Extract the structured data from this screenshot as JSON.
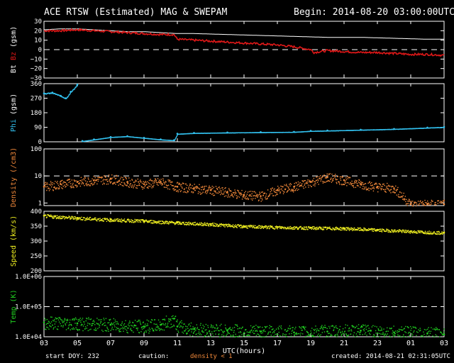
{
  "header": {
    "title": "ACE RTSW (Estimated) MAG & SWEPAM",
    "begin": "Begin: 2014-08-20 03:00:00UTC"
  },
  "footer": {
    "start_doy": "start DOY: 232",
    "caution": "caution:",
    "density_note": "density < 1",
    "created": "created: 2014-08-21 02:31:05UTC"
  },
  "colors": {
    "bt": "#ffffff",
    "bz": "#e01818",
    "phi": "#33c2f0",
    "density": "#f0883a",
    "speed": "#f0f020",
    "temp": "#20d020"
  },
  "chart_data": [
    {
      "type": "line",
      "name": "mag",
      "ylabel_parts": [
        "Bt",
        "Bz",
        "(gsm)"
      ],
      "ylim": [
        -30,
        30
      ],
      "ticks": [
        "30",
        "20",
        "10",
        "0",
        "−10",
        "−20",
        "−30"
      ],
      "tick_values": [
        30,
        20,
        10,
        0,
        -10,
        -20,
        -30
      ],
      "dashed_ref": 0,
      "series": [
        {
          "name": "Bt",
          "x": [
            3,
            4,
            5,
            6,
            7,
            8,
            9,
            10,
            11,
            12,
            14,
            16,
            18,
            20,
            22,
            24,
            26,
            27
          ],
          "y": [
            21,
            22,
            22,
            21,
            20,
            19,
            19,
            18,
            17,
            17,
            16,
            15,
            14,
            13,
            13,
            12,
            11,
            11
          ]
        },
        {
          "name": "Bz",
          "x": [
            3,
            4,
            5,
            6,
            7,
            8,
            9,
            10,
            10.8,
            11,
            12,
            13,
            14,
            15,
            16,
            17,
            18,
            19,
            19.2,
            20,
            21,
            22,
            23,
            24,
            25,
            26,
            27
          ],
          "y": [
            20,
            20,
            21,
            20,
            19,
            18,
            17,
            16,
            16,
            11,
            10,
            9,
            8,
            7,
            6,
            5,
            3,
            0,
            -3,
            -1,
            -2,
            -3,
            -3,
            -4,
            -5,
            -5,
            -6
          ]
        }
      ]
    },
    {
      "type": "scatter",
      "name": "phi",
      "ylabel_parts": [
        "Phi",
        "(gsm)"
      ],
      "ylim": [
        0,
        360
      ],
      "ticks": [
        "360",
        "270",
        "180",
        "90",
        "0"
      ],
      "tick_values": [
        360,
        270,
        180,
        90,
        0
      ],
      "series": [
        {
          "name": "Phi-a",
          "x": [
            3,
            3.5,
            4,
            4.3,
            4.6,
            5
          ],
          "y": [
            300,
            305,
            285,
            270,
            310,
            355
          ]
        },
        {
          "name": "Phi-b",
          "x": [
            5.3,
            6,
            7,
            8,
            9,
            10,
            10.8,
            11,
            12,
            14,
            16,
            18,
            19,
            20,
            22,
            24,
            26,
            27
          ],
          "y": [
            5,
            15,
            30,
            35,
            25,
            15,
            10,
            50,
            55,
            58,
            60,
            62,
            68,
            70,
            75,
            80,
            88,
            92
          ]
        }
      ]
    },
    {
      "type": "scatter",
      "name": "density",
      "ylabel": "Density (/cm3)",
      "log": true,
      "ylim": [
        0.8,
        100
      ],
      "ticks": [
        "100",
        "10",
        "1"
      ],
      "tick_values": [
        100,
        10,
        1
      ],
      "dashed_ref": 10,
      "series": [
        {
          "name": "Density",
          "x": [
            3,
            4,
            5,
            6,
            7,
            8,
            9,
            10,
            11,
            12,
            13,
            14,
            15,
            16,
            17,
            18,
            19,
            20,
            21,
            22,
            23,
            24,
            25,
            26,
            27
          ],
          "y": [
            4,
            5,
            6,
            7,
            8,
            6,
            5,
            6,
            4,
            3.5,
            3,
            2.5,
            2,
            1.8,
            3,
            4,
            6,
            9,
            7,
            5,
            4,
            3.5,
            0.9,
            0.9,
            0.9
          ]
        }
      ]
    },
    {
      "type": "scatter",
      "name": "speed",
      "ylabel": "Speed (km/s)",
      "ylim": [
        200,
        400
      ],
      "ticks": [
        "400",
        "350",
        "300",
        "250",
        "200"
      ],
      "tick_values": [
        400,
        350,
        300,
        250,
        200
      ],
      "series": [
        {
          "name": "Speed",
          "x": [
            3,
            5,
            7,
            9,
            11,
            13,
            15,
            17,
            19,
            21,
            23,
            25,
            27
          ],
          "y": [
            385,
            378,
            372,
            368,
            362,
            357,
            350,
            347,
            345,
            343,
            338,
            333,
            328
          ]
        }
      ]
    },
    {
      "type": "scatter",
      "name": "temp",
      "ylabel": "Temp (K)",
      "log": true,
      "ylim": [
        10000,
        1000000
      ],
      "ticks": [
        "1.0E+06",
        "1.0E+05",
        "1.0E+04"
      ],
      "tick_values": [
        1000000,
        100000,
        10000
      ],
      "dashed_ref": 100000,
      "series": [
        {
          "name": "Temp",
          "x": [
            3,
            5,
            7,
            9,
            10,
            10.8,
            11,
            12,
            14,
            16,
            18,
            20,
            22,
            24,
            26,
            27
          ],
          "y": [
            30000,
            28000,
            25000,
            22000,
            25000,
            40000,
            22000,
            18000,
            16000,
            15000,
            14000,
            15000,
            16000,
            14000,
            13000,
            12000
          ]
        }
      ]
    }
  ],
  "xaxis": {
    "ticks": [
      "03",
      "05",
      "07",
      "09",
      "11",
      "13",
      "15",
      "17",
      "19",
      "21",
      "23",
      "01",
      "03"
    ],
    "tick_values": [
      3,
      5,
      7,
      9,
      11,
      13,
      15,
      17,
      19,
      21,
      23,
      25,
      27
    ],
    "xlabel": "UTC(hours)",
    "xlim": [
      3,
      27
    ]
  }
}
